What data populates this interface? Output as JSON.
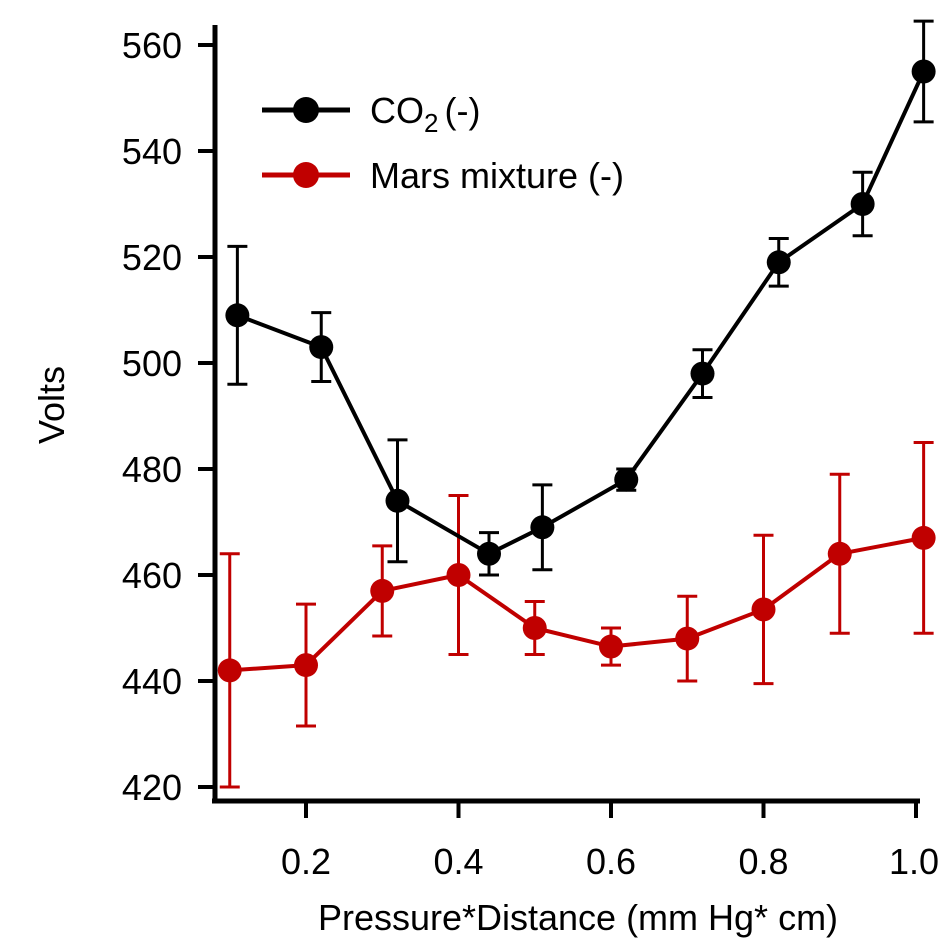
{
  "chart_data": {
    "type": "line",
    "title": "",
    "xlabel": "Pressure*Distance (mm Hg* cm)",
    "ylabel": "Volts",
    "xlim": [
      0.08,
      1.02
    ],
    "ylim": [
      416,
      564
    ],
    "x_ticks": [
      "0.2",
      "0.4",
      "0.6",
      "0.8",
      "1.0"
    ],
    "y_ticks": [
      "420",
      "440",
      "460",
      "480",
      "500",
      "520",
      "540",
      "560"
    ],
    "grid": false,
    "legend_position": "top-left",
    "series": [
      {
        "name": "CO2 (-)",
        "legend_base": "CO",
        "legend_sub": "2",
        "legend_suffix": "(-)",
        "color": "#000000",
        "x": [
          0.11,
          0.22,
          0.32,
          0.44,
          0.51,
          0.62,
          0.72,
          0.82,
          0.93,
          1.01
        ],
        "y": [
          509,
          503,
          474,
          464,
          469,
          478,
          498,
          519,
          530,
          555
        ],
        "err": [
          13,
          6.5,
          11.5,
          4,
          8,
          2,
          4.5,
          4.5,
          6,
          9.5
        ]
      },
      {
        "name": "Mars mixture (-)",
        "color": "#c00000",
        "x": [
          0.1,
          0.2,
          0.3,
          0.4,
          0.5,
          0.6,
          0.7,
          0.8,
          0.9,
          1.01
        ],
        "y": [
          442,
          443,
          457,
          460,
          450,
          446.5,
          448,
          453.5,
          464,
          467
        ],
        "err": [
          22,
          11.5,
          8.5,
          15,
          5,
          3.5,
          8,
          14,
          15,
          18
        ]
      }
    ]
  }
}
